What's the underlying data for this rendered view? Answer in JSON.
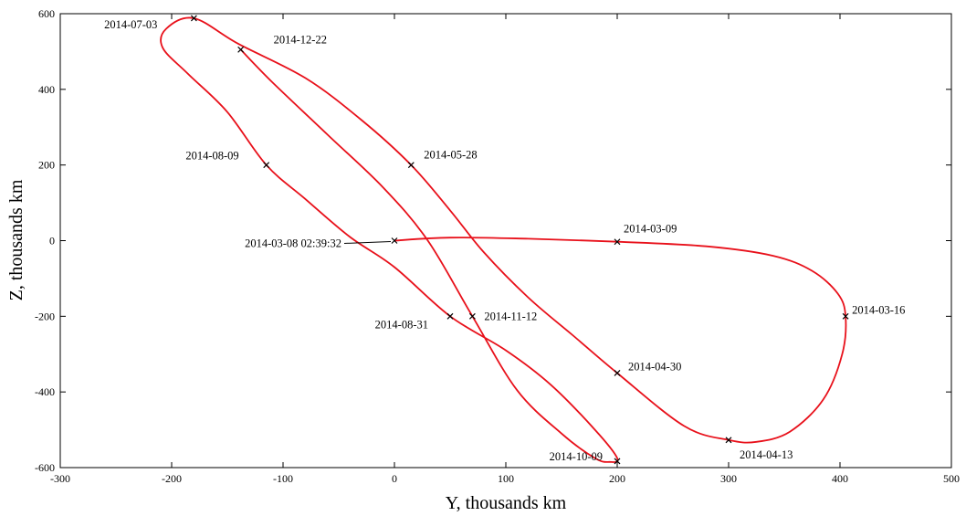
{
  "chart_data": {
    "type": "line",
    "xlabel": "Y, thousands km",
    "ylabel": "Z, thousands km",
    "xlim": [
      -300,
      500
    ],
    "ylim": [
      -600,
      600
    ],
    "x_ticks": [
      -300,
      -200,
      -100,
      0,
      100,
      200,
      300,
      400,
      500
    ],
    "y_ticks": [
      -600,
      -400,
      -200,
      0,
      200,
      400,
      600
    ],
    "grid": false,
    "line_color": "#e8101a",
    "marker_color": "#000000",
    "series": [
      {
        "points": [
          [
            0,
            0
          ],
          [
            50,
            8
          ],
          [
            120,
            5
          ],
          [
            200,
            -3
          ],
          [
            280,
            -15
          ],
          [
            340,
            -40
          ],
          [
            375,
            -80
          ],
          [
            398,
            -140
          ],
          [
            405,
            -200
          ],
          [
            402,
            -300
          ],
          [
            385,
            -420
          ],
          [
            355,
            -505
          ],
          [
            325,
            -532
          ],
          [
            300,
            -527
          ],
          [
            260,
            -490
          ],
          [
            200,
            -350
          ],
          [
            160,
            -250
          ],
          [
            120,
            -150
          ],
          [
            80,
            -30
          ],
          [
            50,
            80
          ],
          [
            15,
            200
          ],
          [
            -30,
            320
          ],
          [
            -80,
            430
          ],
          [
            -140,
            520
          ],
          [
            -180,
            588
          ],
          [
            -205,
            560
          ],
          [
            -208,
            510
          ],
          [
            -185,
            440
          ],
          [
            -150,
            340
          ],
          [
            -115,
            200
          ],
          [
            -80,
            110
          ],
          [
            -40,
            10
          ],
          [
            0,
            -70
          ],
          [
            50,
            -200
          ],
          [
            100,
            -290
          ],
          [
            140,
            -380
          ],
          [
            180,
            -500
          ],
          [
            200,
            -575
          ],
          [
            193,
            -585
          ],
          [
            180,
            -575
          ],
          [
            150,
            -510
          ],
          [
            110,
            -395
          ],
          [
            70,
            -200
          ],
          [
            30,
            0
          ],
          [
            -10,
            140
          ],
          [
            -60,
            280
          ],
          [
            -110,
            420
          ],
          [
            -138,
            505
          ]
        ]
      }
    ],
    "markers": [
      {
        "x": 0,
        "y": 0,
        "label": "2014-03-08 02:39:32"
      },
      {
        "x": 200,
        "y": -3,
        "label": "2014-03-09"
      },
      {
        "x": 405,
        "y": -200,
        "label": "2014-03-16"
      },
      {
        "x": 300,
        "y": -527,
        "label": "2014-04-13"
      },
      {
        "x": 200,
        "y": -350,
        "label": "2014-04-30"
      },
      {
        "x": 15,
        "y": 200,
        "label": "2014-05-28"
      },
      {
        "x": -180,
        "y": 588,
        "label": "2014-07-03"
      },
      {
        "x": -115,
        "y": 200,
        "label": "2014-08-09"
      },
      {
        "x": 50,
        "y": -200,
        "label": "2014-08-31"
      },
      {
        "x": 200,
        "y": -583,
        "label": "2014-10-09"
      },
      {
        "x": 70,
        "y": -200,
        "label": "2014-11-12"
      },
      {
        "x": -138,
        "y": 505,
        "label": "2014-12-22"
      }
    ]
  }
}
